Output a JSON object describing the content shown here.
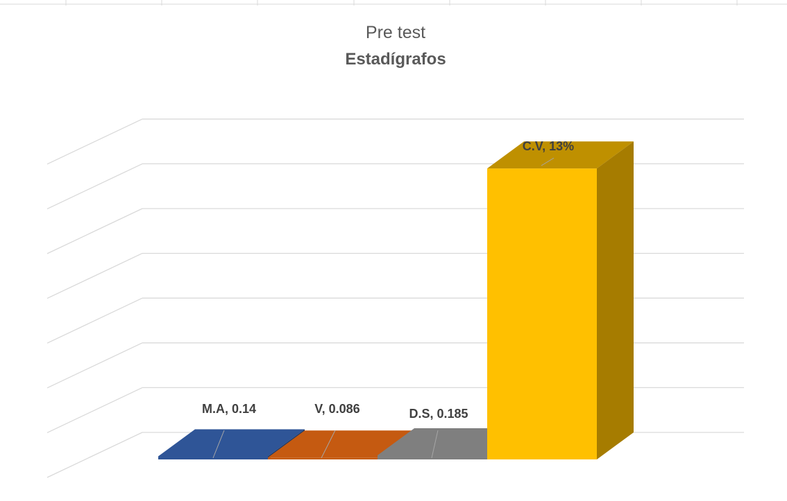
{
  "chart_data": {
    "type": "bar",
    "title": "Pre test",
    "subtitle": "Estadígrafos",
    "categories": [
      "M.A",
      "V",
      "D.S",
      "C.V"
    ],
    "values": [
      0.14,
      0.086,
      0.185,
      13
    ],
    "data_labels": [
      "M.A, 0.14",
      "V, 0.086",
      "D.S, 0.185",
      "C.V, 13%"
    ],
    "ylim": [
      0,
      14
    ],
    "grid": true,
    "three_d": true,
    "legend": "none",
    "colors": [
      "#2F5597",
      "#C55A11",
      "#7F7F7F",
      "#FFC000"
    ],
    "side_colors": [
      "#1F3864",
      "#843C0C",
      "#595959",
      "#A67C00"
    ],
    "top_colors": [
      "#2F5597",
      "#C55A11",
      "#7F7F7F",
      "#BF9000"
    ]
  }
}
